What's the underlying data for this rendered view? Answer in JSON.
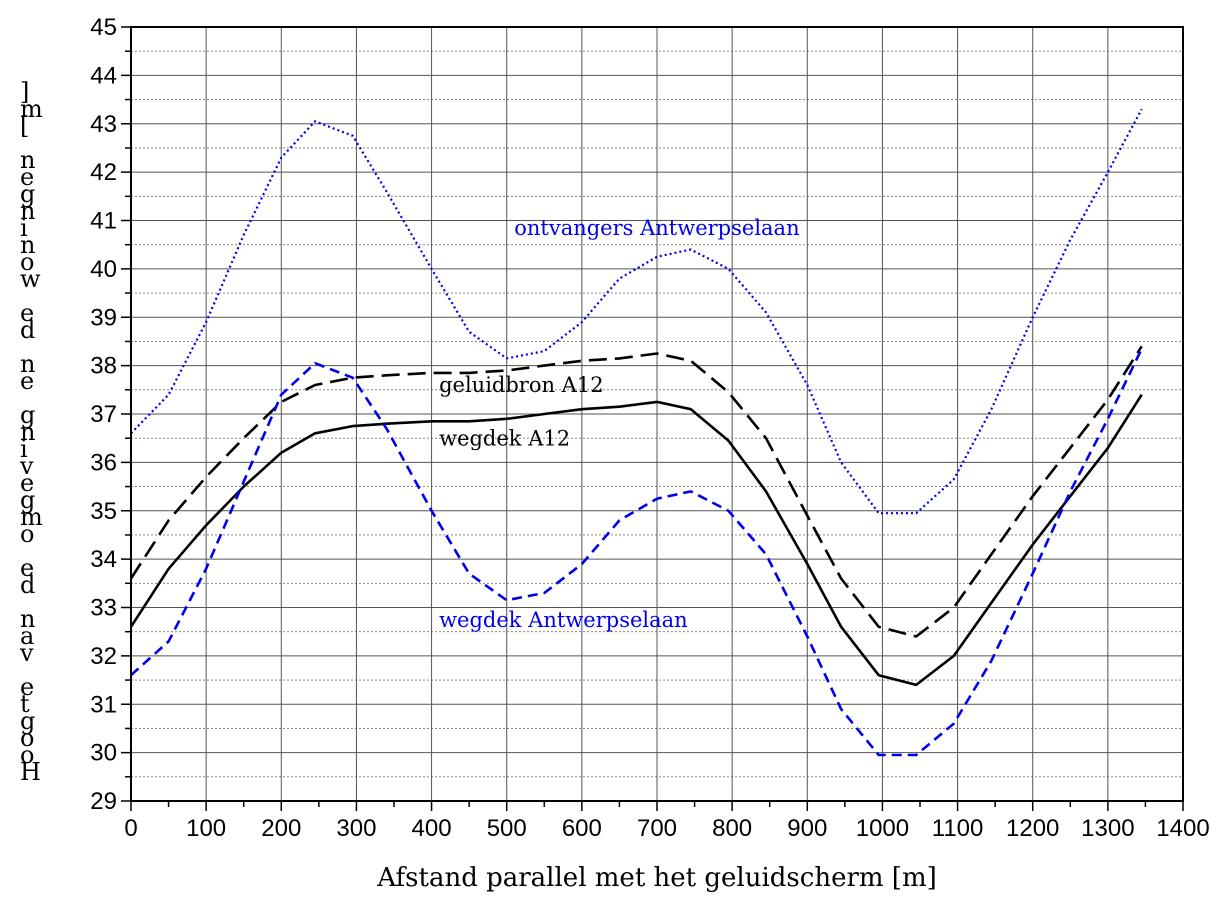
{
  "chart_data": {
    "type": "line",
    "xlabel": "Afstand parallel met het geluidscherm [m]",
    "ylabel": "Hoogte van de omgeving en de woningen [m]",
    "xlim": [
      0,
      1400
    ],
    "ylim": [
      29,
      45
    ],
    "x_ticks": [
      0,
      100,
      200,
      300,
      400,
      500,
      600,
      700,
      800,
      900,
      1000,
      1100,
      1200,
      1300,
      1400
    ],
    "y_ticks": [
      29,
      30,
      31,
      32,
      33,
      34,
      35,
      36,
      37,
      38,
      39,
      40,
      41,
      42,
      43,
      44,
      45
    ],
    "grid": true,
    "series": [
      {
        "name": "ontvangers Antwerpselaan",
        "color": "#0000ee",
        "style": "dotted",
        "x": [
          0,
          50,
          100,
          150,
          200,
          245,
          295,
          340,
          400,
          450,
          500,
          550,
          600,
          650,
          700,
          745,
          795,
          845,
          900,
          945,
          995,
          1045,
          1095,
          1145,
          1200,
          1250,
          1300,
          1345
        ],
        "y": [
          36.6,
          37.4,
          38.9,
          40.7,
          42.3,
          43.05,
          42.75,
          41.6,
          40.0,
          38.7,
          38.15,
          38.3,
          38.9,
          39.8,
          40.25,
          40.4,
          40.0,
          39.1,
          37.6,
          36.0,
          34.95,
          34.95,
          35.65,
          37.1,
          39.0,
          40.6,
          42.0,
          43.3
        ]
      },
      {
        "name": "geluidbron A12",
        "color": "#000000",
        "style": "long-dash",
        "x": [
          0,
          50,
          100,
          150,
          200,
          245,
          295,
          340,
          400,
          450,
          500,
          550,
          600,
          650,
          700,
          745,
          795,
          845,
          900,
          945,
          995,
          1045,
          1095,
          1145,
          1200,
          1250,
          1300,
          1345
        ],
        "y": [
          33.6,
          34.8,
          35.7,
          36.5,
          37.25,
          37.6,
          37.75,
          37.8,
          37.85,
          37.85,
          37.9,
          38.0,
          38.1,
          38.15,
          38.25,
          38.1,
          37.45,
          36.5,
          34.9,
          33.6,
          32.6,
          32.4,
          33.0,
          34.1,
          35.3,
          36.3,
          37.3,
          38.4
        ]
      },
      {
        "name": "wegdek A12",
        "color": "#000000",
        "style": "solid",
        "x": [
          0,
          50,
          100,
          150,
          200,
          245,
          295,
          340,
          400,
          450,
          500,
          550,
          600,
          650,
          700,
          745,
          795,
          845,
          900,
          945,
          995,
          1045,
          1095,
          1145,
          1200,
          1250,
          1300,
          1345
        ],
        "y": [
          32.6,
          33.8,
          34.7,
          35.5,
          36.2,
          36.6,
          36.75,
          36.8,
          36.85,
          36.85,
          36.9,
          37.0,
          37.1,
          37.15,
          37.25,
          37.1,
          36.45,
          35.4,
          33.9,
          32.6,
          31.6,
          31.4,
          32.0,
          33.1,
          34.3,
          35.3,
          36.3,
          37.4
        ]
      },
      {
        "name": "wegdek Antwerpselaan",
        "color": "#0000ee",
        "style": "dashed",
        "x": [
          0,
          50,
          100,
          150,
          200,
          245,
          295,
          340,
          400,
          450,
          500,
          550,
          600,
          650,
          700,
          745,
          795,
          845,
          900,
          945,
          995,
          1045,
          1095,
          1145,
          1200,
          1250,
          1300,
          1345
        ],
        "y": [
          31.6,
          32.3,
          33.8,
          35.6,
          37.4,
          38.05,
          37.75,
          36.7,
          35.0,
          33.7,
          33.15,
          33.3,
          33.9,
          34.8,
          35.25,
          35.4,
          35.0,
          34.1,
          32.4,
          30.9,
          29.95,
          29.95,
          30.6,
          31.9,
          33.7,
          35.4,
          36.9,
          38.35
        ]
      }
    ],
    "annotations": [
      {
        "text": "ontvangers Antwerpselaan",
        "x": 510,
        "y": 40.7,
        "color": "#0000ee"
      },
      {
        "text": "geluidbron A12",
        "x": 410,
        "y": 37.45,
        "color": "#000000"
      },
      {
        "text": "wegdek A12",
        "x": 410,
        "y": 36.35,
        "color": "#000000"
      },
      {
        "text": "wegdek Antwerpselaan",
        "x": 410,
        "y": 32.6,
        "color": "#0000ee"
      }
    ]
  }
}
